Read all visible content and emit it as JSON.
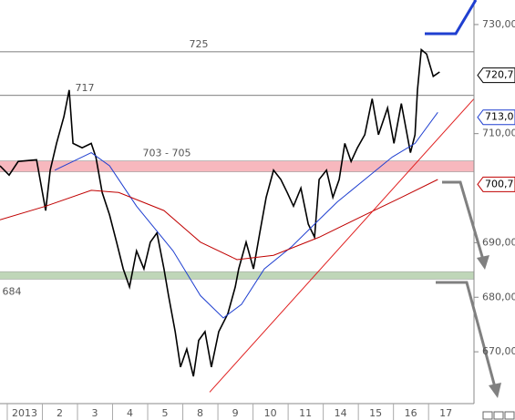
{
  "chart_data": {
    "type": "line",
    "xlim": [
      -0.7,
      12.8
    ],
    "xticks": [
      {
        "value": 0,
        "label": "2013"
      },
      {
        "value": 1,
        "label": "2"
      },
      {
        "value": 2,
        "label": "3"
      },
      {
        "value": 3,
        "label": "4"
      },
      {
        "value": 4,
        "label": "5"
      },
      {
        "value": 5,
        "label": "8"
      },
      {
        "value": 6,
        "label": "9"
      },
      {
        "value": 7,
        "label": "10"
      },
      {
        "value": 8,
        "label": "11"
      },
      {
        "value": 9,
        "label": "14"
      },
      {
        "value": 10,
        "label": "15"
      },
      {
        "value": 11,
        "label": "16"
      },
      {
        "value": 12,
        "label": "17"
      }
    ],
    "ylim": [
      661,
      734.5
    ],
    "yticks": [
      {
        "value": 670,
        "label": "670,00"
      },
      {
        "value": 680,
        "label": "680,00"
      },
      {
        "value": 690,
        "label": "690,00"
      },
      {
        "value": 710,
        "label": "710,00"
      },
      {
        "value": 730,
        "label": "730,00"
      }
    ],
    "levels": [
      {
        "label": "725",
        "value": 725
      },
      {
        "label": "717",
        "value": 717
      }
    ],
    "bands": [
      {
        "label": "703 - 705",
        "from": 703,
        "to": 705,
        "color": "#f4a0a8"
      },
      {
        "label": "684",
        "from": 683.3,
        "to": 684.7,
        "color": "#a9c8a0"
      }
    ],
    "badges": [
      {
        "label": "720,7",
        "value": 720.7,
        "color": "#000000"
      },
      {
        "label": "713,0",
        "value": 713.0,
        "color": "#1f3fd0"
      },
      {
        "label": "700,7",
        "value": 700.7,
        "color": "#c00000"
      }
    ],
    "series": [
      {
        "color": "#000000",
        "x": [
          -0.7,
          -0.44,
          -0.18,
          0.34,
          0.6,
          0.73,
          0.91,
          1.12,
          1.27,
          1.38,
          1.64,
          1.9,
          2.03,
          2.21,
          2.42,
          2.62,
          2.81,
          2.99,
          3.19,
          3.4,
          3.58,
          3.77,
          3.97,
          4.1,
          4.29,
          4.44,
          4.62,
          4.81,
          4.96,
          5.14,
          5.32,
          5.53,
          5.79,
          6.0,
          6.1,
          6.31,
          6.52,
          6.7,
          6.88,
          7.09,
          7.3,
          7.48,
          7.66,
          7.87,
          8.08,
          8.26,
          8.39,
          8.6,
          8.78,
          8.96,
          9.12,
          9.3,
          9.48,
          9.69,
          9.9,
          10.08,
          10.34,
          10.52,
          10.73,
          10.99,
          11.12,
          11.19,
          11.3,
          11.45,
          11.64,
          11.82
        ],
        "values": [
          704.1,
          702.4,
          704.9,
          705.2,
          695.9,
          703.3,
          708.2,
          713.1,
          718.0,
          708.2,
          707.4,
          708.2,
          705.7,
          699.2,
          695.1,
          690.1,
          685.2,
          681.9,
          688.5,
          685.2,
          690.1,
          691.8,
          685.2,
          680.3,
          673.7,
          667.2,
          670.5,
          665.5,
          672.1,
          673.7,
          667.2,
          673.7,
          677.0,
          681.9,
          685.2,
          690.1,
          685.2,
          691.8,
          698.3,
          703.3,
          701.6,
          699.2,
          696.7,
          700.0,
          693.4,
          691.0,
          701.6,
          703.3,
          698.3,
          701.6,
          708.2,
          704.9,
          707.4,
          709.8,
          716.4,
          709.8,
          714.7,
          708.2,
          715.5,
          706.5,
          709.8,
          718.0,
          725.4,
          724.6,
          720.5,
          721.3
        ]
      },
      {
        "color": "#1f3fd0",
        "x": [
          0.86,
          1.9,
          2.42,
          3.19,
          4.23,
          5.01,
          5.66,
          6.18,
          6.83,
          7.61,
          8.26,
          8.91,
          9.69,
          10.47,
          11.12,
          11.77
        ],
        "values": [
          703.3,
          706.5,
          704.1,
          696.7,
          688.5,
          680.3,
          676.2,
          678.7,
          685.2,
          689.3,
          693.4,
          697.5,
          701.6,
          705.7,
          708.2,
          713.9
        ]
      },
      {
        "color": "#c00000",
        "x": [
          -0.7,
          0.6,
          1.9,
          2.68,
          3.97,
          5.01,
          6.05,
          7.09,
          8.39,
          9.69,
          10.73,
          11.77
        ],
        "values": [
          694.2,
          696.7,
          699.6,
          699.2,
          695.9,
          690.1,
          686.9,
          687.7,
          691.0,
          695.1,
          698.3,
          701.6
        ]
      },
      {
        "color": "#e02020",
        "x": [
          5.27,
          12.8
        ],
        "values": [
          662.6,
          716.4
        ]
      }
    ]
  }
}
